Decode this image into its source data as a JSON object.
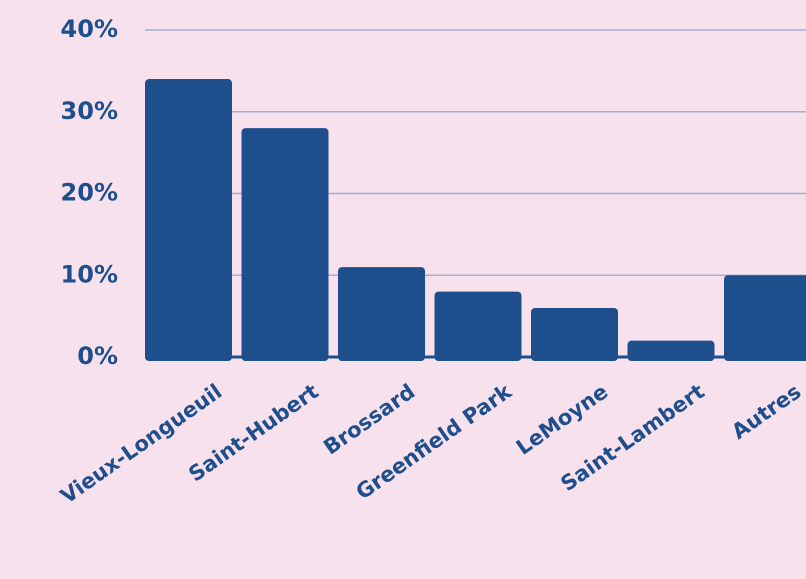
{
  "chart_data": {
    "type": "bar",
    "categories": [
      "Vieux-Longueuil",
      "Saint-Hubert",
      "Brossard",
      "Greenfield Park",
      "LeMoyne",
      "Saint-Lambert",
      "Autres"
    ],
    "values": [
      34,
      28,
      11,
      8,
      6,
      2,
      10
    ],
    "ylim": [
      0,
      40
    ],
    "yticks": [
      0,
      10,
      20,
      30,
      40
    ],
    "ytick_labels": [
      "0%",
      "10%",
      "20%",
      "30%",
      "40%"
    ],
    "grid": true,
    "legend": "none",
    "colors": {
      "background": "#f7e1ec",
      "bar": "#1f4e8c",
      "text": "#1f4e8c",
      "grid": "#a7aecb",
      "baseline": "#1f4e8c"
    }
  }
}
